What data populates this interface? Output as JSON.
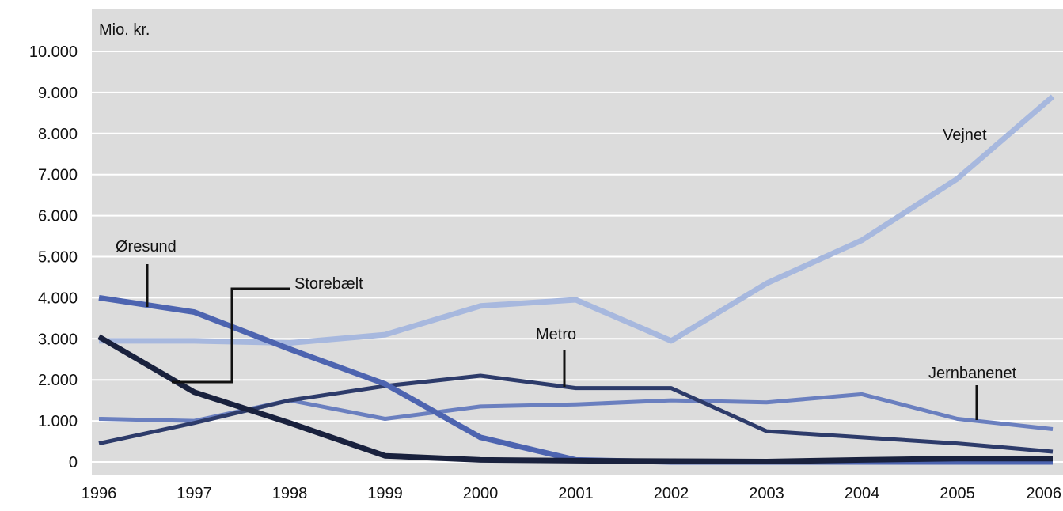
{
  "chart_data": {
    "type": "line",
    "title": "",
    "xlabel": "",
    "ylabel": "Mio. kr.",
    "x": [
      1996,
      1997,
      1998,
      1999,
      2000,
      2001,
      2002,
      2003,
      2004,
      2005,
      2006
    ],
    "ylim": [
      0,
      10000
    ],
    "yticks": [
      0,
      1000,
      2000,
      3000,
      4000,
      5000,
      6000,
      7000,
      8000,
      9000,
      10000
    ],
    "ytick_labels": [
      "0",
      "1.000",
      "2.000",
      "3.000",
      "4.000",
      "5.000",
      "6.000",
      "7.000",
      "8.000",
      "9.000",
      "10.000"
    ],
    "grid": true,
    "background_color": "#dcdcdc",
    "series": [
      {
        "name": "Vejnet",
        "color": "#a7b8de",
        "values": [
          2950,
          2950,
          2900,
          3100,
          3800,
          3950,
          2950,
          4350,
          5400,
          6900,
          8900
        ]
      },
      {
        "name": "Jernbanenet",
        "color": "#6a7fbf",
        "values": [
          1050,
          1000,
          1500,
          1050,
          1350,
          1400,
          1500,
          1450,
          1650,
          1050,
          800
        ]
      },
      {
        "name": "Metro",
        "color": "#2d3b6a",
        "values": [
          450,
          950,
          1500,
          1850,
          2100,
          1800,
          1800,
          750,
          600,
          450,
          250
        ]
      },
      {
        "name": "Øresund",
        "color": "#4d64b0",
        "values": [
          4000,
          3650,
          2750,
          1900,
          600,
          50,
          0,
          0,
          0,
          0,
          0
        ]
      },
      {
        "name": "Storebælt",
        "color": "#19213d",
        "values": [
          3050,
          1700,
          950,
          150,
          50,
          30,
          20,
          10,
          50,
          80,
          80
        ]
      }
    ],
    "annotations": [
      {
        "text": "Vejnet"
      },
      {
        "text": "Øresund"
      },
      {
        "text": "Storebælt"
      },
      {
        "text": "Metro"
      },
      {
        "text": "Jernbanenet"
      }
    ]
  }
}
